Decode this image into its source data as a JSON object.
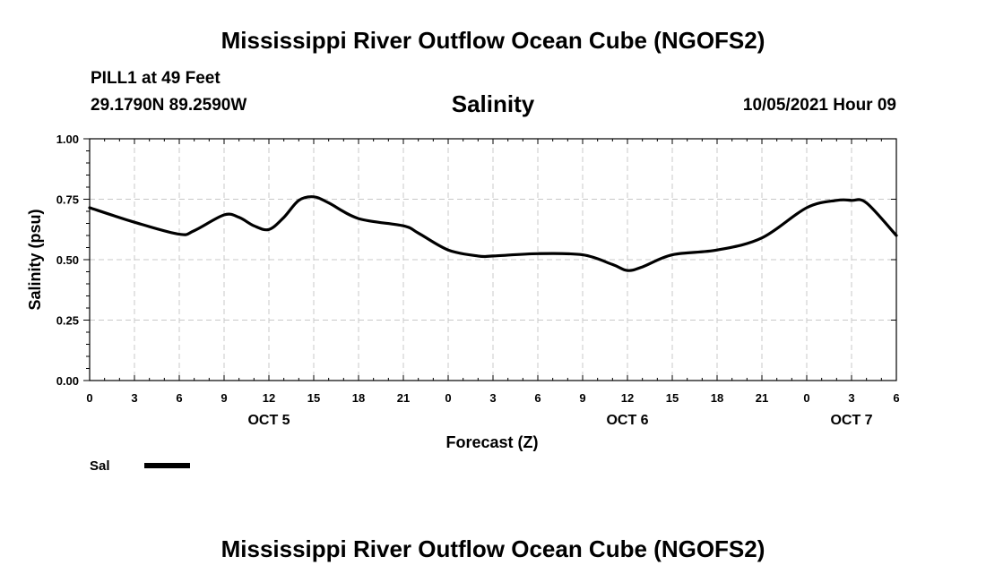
{
  "header": {
    "title": "Mississippi River Outflow Ocean Cube (NGOFS2)",
    "station": "PILL1 at 49 Feet",
    "coordinates": "29.1790N  89.2590W",
    "datetime": "10/05/2021 Hour 09"
  },
  "footer": {
    "title": "Mississippi River Outflow Ocean Cube (NGOFS2)"
  },
  "chart_data": {
    "type": "line",
    "title": "Salinity",
    "xlabel": "Forecast (Z)",
    "ylabel": "Salinity (psu)",
    "xlim": [
      0,
      54
    ],
    "ylim": [
      0,
      1
    ],
    "grid": true,
    "x_tick_labels": [
      "0",
      "3",
      "6",
      "9",
      "12",
      "15",
      "18",
      "21",
      "0",
      "3",
      "6",
      "9",
      "12",
      "15",
      "18",
      "21",
      "0",
      "3",
      "6"
    ],
    "y_tick_labels": [
      "0.00",
      "0.25",
      "0.50",
      "0.75",
      "1.00"
    ],
    "day_labels": [
      {
        "label": "OCT 5",
        "x": 12
      },
      {
        "label": "OCT 6",
        "x": 36
      },
      {
        "label": "OCT 7",
        "x": 51
      }
    ],
    "legend": {
      "position": "bottom-left",
      "entries": [
        "Sal"
      ]
    },
    "series": [
      {
        "name": "Sal",
        "x": [
          0,
          3,
          6,
          7,
          9,
          10,
          11,
          12,
          13,
          14,
          15,
          16,
          18,
          21,
          22,
          24,
          26,
          27,
          30,
          33,
          35,
          36,
          37,
          39,
          42,
          45,
          48,
          50,
          51,
          52,
          54
        ],
        "values": [
          0.715,
          0.655,
          0.605,
          0.62,
          0.685,
          0.675,
          0.64,
          0.625,
          0.675,
          0.745,
          0.76,
          0.735,
          0.67,
          0.64,
          0.61,
          0.54,
          0.515,
          0.515,
          0.525,
          0.52,
          0.48,
          0.455,
          0.47,
          0.52,
          0.54,
          0.59,
          0.715,
          0.745,
          0.745,
          0.735,
          0.6
        ]
      }
    ]
  }
}
